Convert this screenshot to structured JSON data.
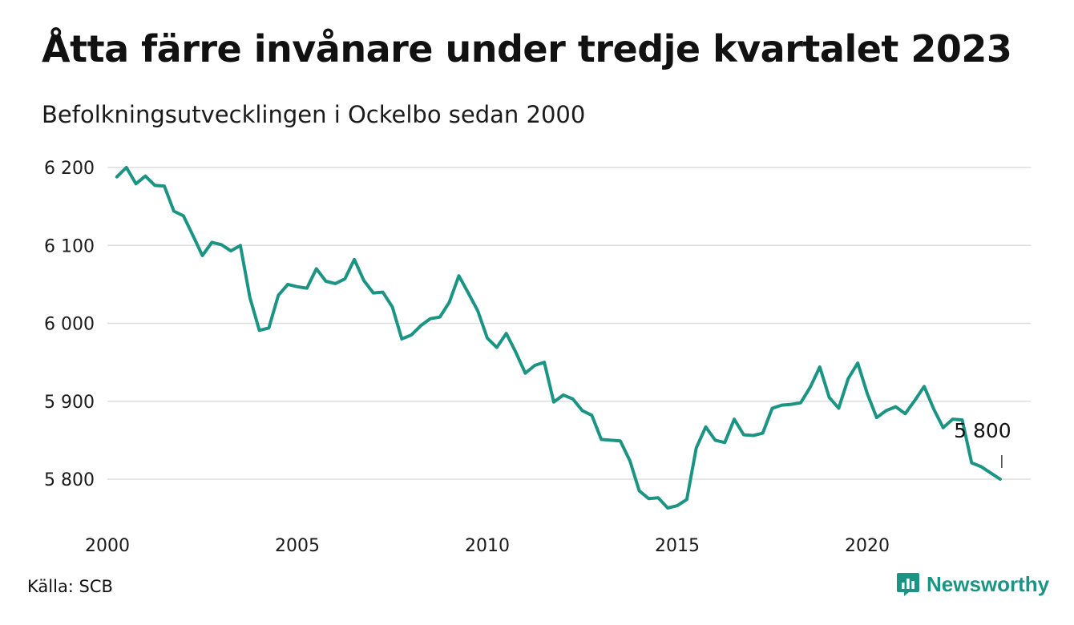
{
  "header": {
    "title": "Åtta färre invånare under tredje kvartalet 2023",
    "subtitle": "Befolkningsutvecklingen i Ockelbo sedan 2000"
  },
  "footer": {
    "source": "Källa: SCB",
    "brand": "Newsworthy",
    "brand_icon": "bar-chart-speech-bubble-icon"
  },
  "colors": {
    "series": "#1b9484",
    "grid": "#dddddd",
    "brand": "#1b9484"
  },
  "chart_data": {
    "type": "line",
    "title": "Åtta färre invånare under tredje kvartalet 2023",
    "subtitle": "Befolkningsutvecklingen i Ockelbo sedan 2000",
    "xlim": [
      2000,
      2024
    ],
    "ylim": [
      5750,
      6210
    ],
    "yticks": [
      6200,
      6100,
      6000,
      5900,
      5800
    ],
    "ytick_labels": [
      "6 200",
      "6 100",
      "6 000",
      "5 900",
      "5 800"
    ],
    "xticks": [
      2000,
      2005,
      2010,
      2015,
      2020
    ],
    "xtick_labels": [
      "2000",
      "2005",
      "2010",
      "2015",
      "2020"
    ],
    "grid": true,
    "end_label": "5 800",
    "series": [
      {
        "x": [
          2000.25,
          2000.5,
          2000.75,
          2001.0,
          2001.25,
          2001.5,
          2001.75,
          2002.0,
          2002.25,
          2002.5,
          2002.75,
          2003.0,
          2003.25,
          2003.5,
          2003.75,
          2004.0,
          2004.25,
          2004.5,
          2004.75,
          2005.0,
          2005.25,
          2005.5,
          2005.75,
          2006.0,
          2006.25,
          2006.5,
          2006.75,
          2007.0,
          2007.25,
          2007.5,
          2007.75,
          2008.0,
          2008.25,
          2008.5,
          2008.75,
          2009.0,
          2009.25,
          2009.5,
          2009.75,
          2010.0,
          2010.25,
          2010.5,
          2010.75,
          2011.0,
          2011.25,
          2011.5,
          2011.75,
          2012.0,
          2012.25,
          2012.5,
          2012.75,
          2013.0,
          2013.25,
          2013.5,
          2013.75,
          2014.0,
          2014.25,
          2014.5,
          2014.75,
          2015.0,
          2015.25,
          2015.5,
          2015.75,
          2016.0,
          2016.25,
          2016.5,
          2016.75,
          2017.0,
          2017.25,
          2017.5,
          2017.75,
          2018.0,
          2018.25,
          2018.5,
          2018.75,
          2019.0,
          2019.25,
          2019.5,
          2019.75,
          2020.0,
          2020.25,
          2020.5,
          2020.75,
          2021.0,
          2021.25,
          2021.5,
          2021.75,
          2022.0,
          2022.25,
          2022.5,
          2022.75,
          2023.0,
          2023.25,
          2023.5
        ],
        "values": [
          6188,
          6200,
          6179,
          6189,
          6177,
          6176,
          6144,
          6138,
          6113,
          6087,
          6104,
          6101,
          6093,
          6100,
          6033,
          5991,
          5994,
          6036,
          6050,
          6047,
          6045,
          6070,
          6054,
          6051,
          6057,
          6082,
          6055,
          6039,
          6040,
          6021,
          5980,
          5985,
          5997,
          6006,
          6008,
          6027,
          6061,
          6039,
          6016,
          5981,
          5969,
          5987,
          5963,
          5936,
          5946,
          5950,
          5899,
          5908,
          5903,
          5888,
          5882,
          5851,
          5850,
          5849,
          5824,
          5785,
          5775,
          5776,
          5763,
          5766,
          5774,
          5840,
          5867,
          5850,
          5847,
          5877,
          5857,
          5856,
          5859,
          5891,
          5895,
          5896,
          5898,
          5918,
          5944,
          5905,
          5891,
          5929,
          5949,
          5910,
          5879,
          5888,
          5893,
          5884,
          5901,
          5919,
          5890,
          5866,
          5877,
          5876,
          5821,
          5816,
          5808,
          5800
        ]
      }
    ]
  }
}
